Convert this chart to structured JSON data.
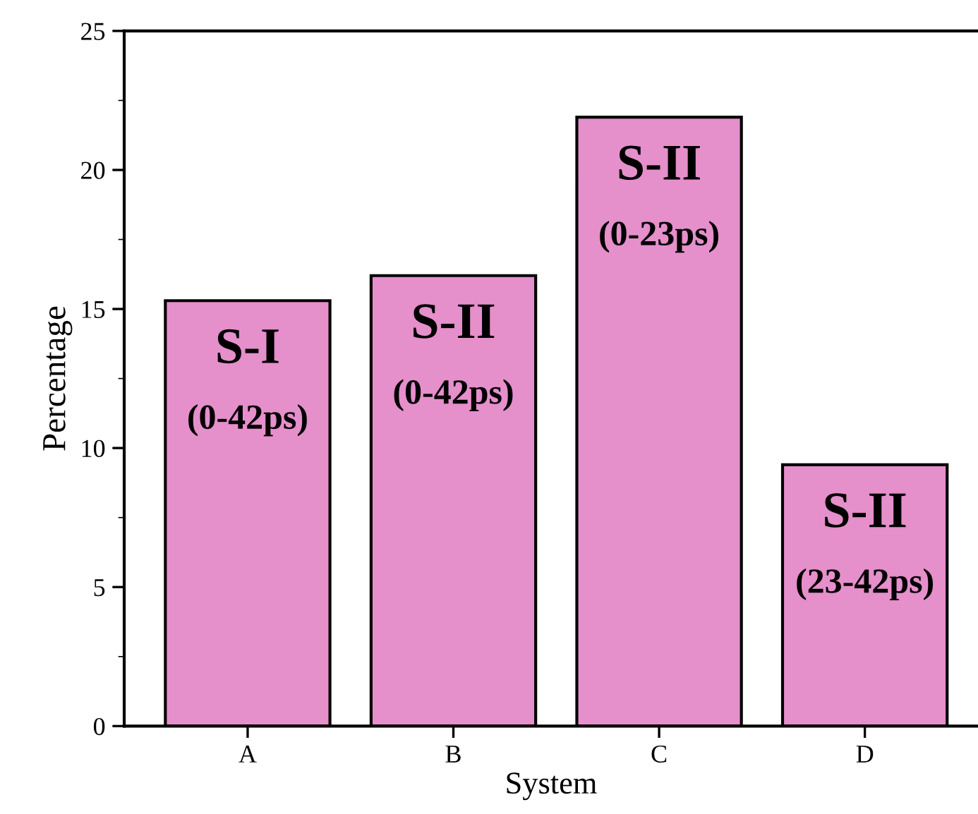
{
  "chart_data": {
    "type": "bar",
    "xlabel": "System",
    "ylabel": "Percentage",
    "categories": [
      "A",
      "B",
      "C",
      "D"
    ],
    "values": [
      15.3,
      16.2,
      21.9,
      9.4
    ],
    "color": "#e58fcb",
    "ylim": [
      0,
      25
    ],
    "yticks": [
      0,
      5,
      10,
      15,
      20,
      25
    ],
    "grid": false,
    "annotations": [
      "S-I",
      "(0-42ps)",
      "S-II",
      "(0-42ps)",
      "S-II",
      "(0-23ps)",
      "S-II",
      "(23-42ps)"
    ]
  }
}
